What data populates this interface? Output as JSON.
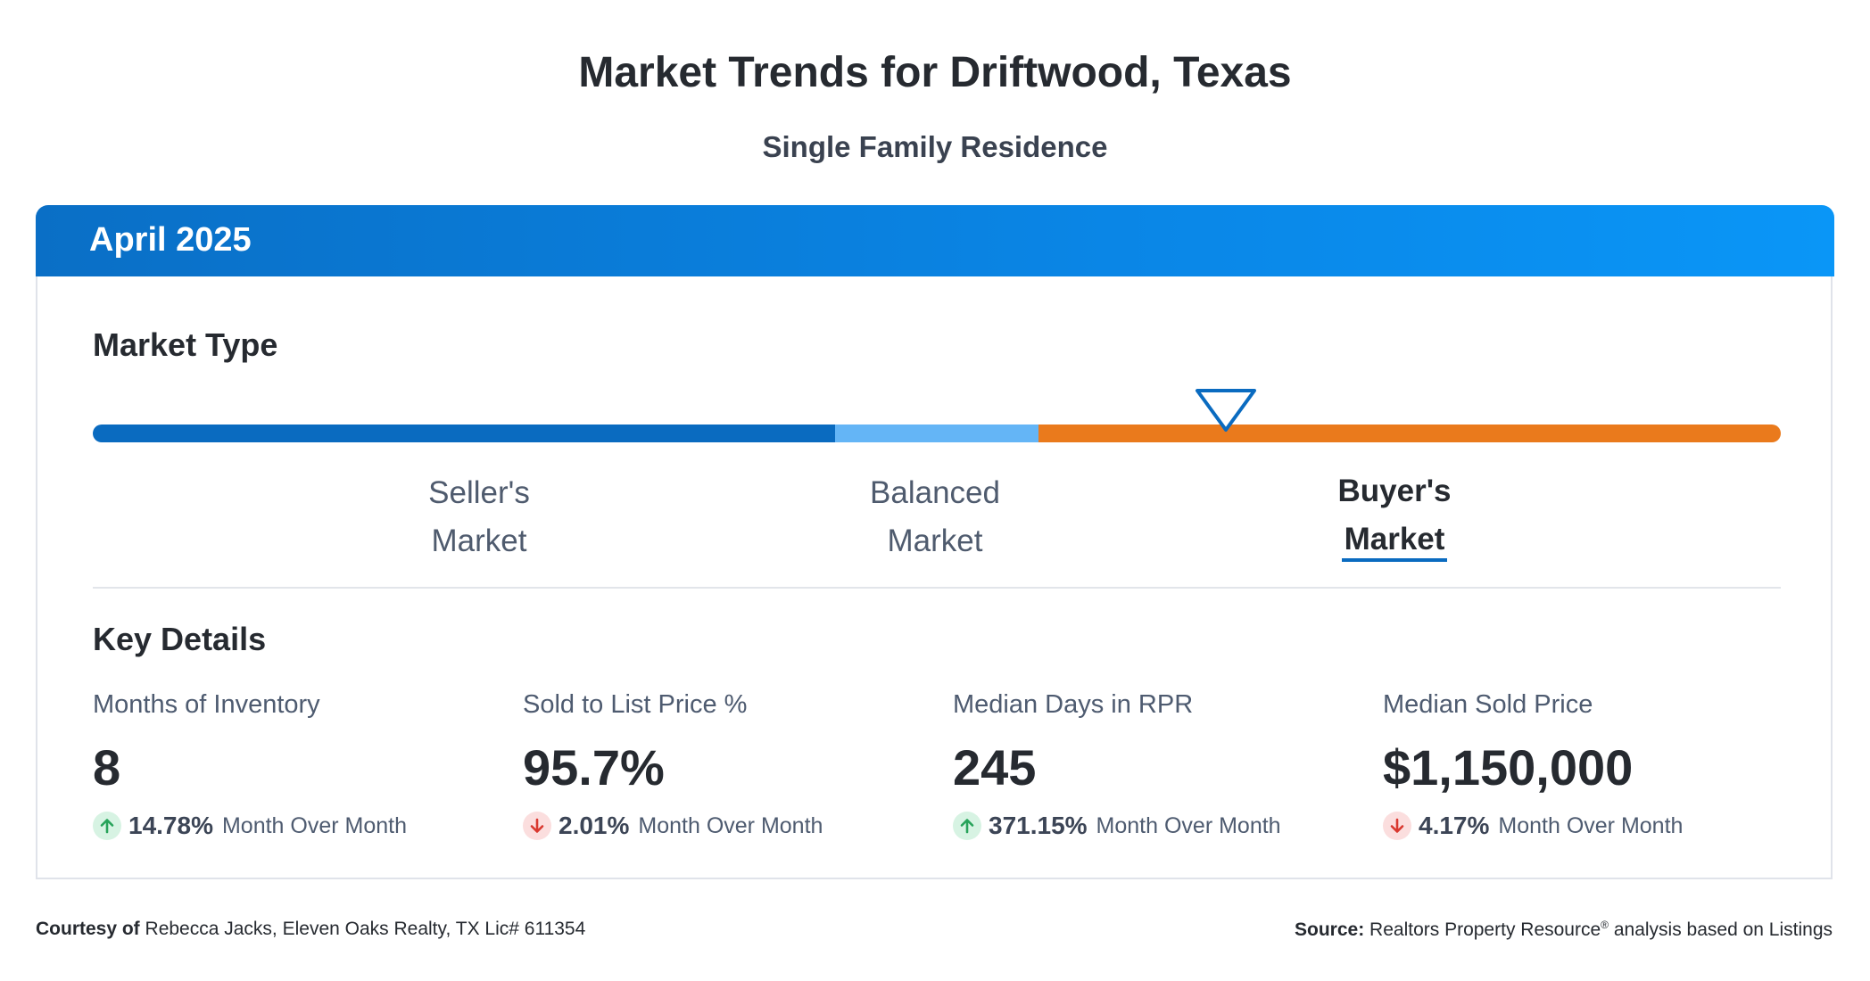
{
  "header": {
    "title": "Market Trends for Driftwood, Texas",
    "subtitle": "Single Family Residence"
  },
  "card": {
    "period": "April 2025",
    "market_type": {
      "heading": "Market Type",
      "segments": [
        {
          "line1": "Seller's",
          "line2": "Market",
          "color": "#0a6bc0",
          "active": false
        },
        {
          "line1": "Balanced",
          "line2": "Market",
          "color": "#64b5f6",
          "active": false
        },
        {
          "line1": "Buyer's",
          "line2": "Market",
          "color": "#ea7a1c",
          "active": true
        }
      ],
      "indicator_color": "#0a6bc0"
    },
    "key_details": {
      "heading": "Key Details",
      "stats": [
        {
          "label": "Months of Inventory",
          "value": "8",
          "direction": "up",
          "change": "14.78%",
          "change_text": "Month Over Month"
        },
        {
          "label": "Sold to List Price %",
          "value": "95.7%",
          "direction": "down",
          "change": "2.01%",
          "change_text": "Month Over Month"
        },
        {
          "label": "Median Days in RPR",
          "value": "245",
          "direction": "up",
          "change": "371.15%",
          "change_text": "Month Over Month"
        },
        {
          "label": "Median Sold Price",
          "value": "$1,150,000",
          "direction": "down",
          "change": "4.17%",
          "change_text": "Month Over Month"
        }
      ]
    }
  },
  "footer": {
    "courtesy_label": "Courtesy of",
    "courtesy_text": "Rebecca Jacks, Eleven Oaks Realty, TX Lic# 611354",
    "source_label": "Source:",
    "source_text": "Realtors Property Resource",
    "source_mark": "®",
    "source_suffix": "analysis based on Listings"
  },
  "colors": {
    "up_arrow": "#27a35a",
    "down_arrow": "#d9382f",
    "header_blue": "#0a86e6"
  }
}
